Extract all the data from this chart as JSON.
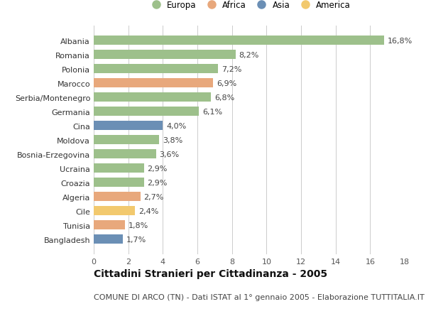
{
  "categories": [
    "Albania",
    "Romania",
    "Polonia",
    "Marocco",
    "Serbia/Montenegro",
    "Germania",
    "Cina",
    "Moldova",
    "Bosnia-Erzegovina",
    "Ucraina",
    "Croazia",
    "Algeria",
    "Cile",
    "Tunisia",
    "Bangladesh"
  ],
  "values": [
    16.8,
    8.2,
    7.2,
    6.9,
    6.8,
    6.1,
    4.0,
    3.8,
    3.6,
    2.9,
    2.9,
    2.7,
    2.4,
    1.8,
    1.7
  ],
  "labels": [
    "16,8%",
    "8,2%",
    "7,2%",
    "6,9%",
    "6,8%",
    "6,1%",
    "4,0%",
    "3,8%",
    "3,6%",
    "2,9%",
    "2,9%",
    "2,7%",
    "2,4%",
    "1,8%",
    "1,7%"
  ],
  "continent": [
    "Europa",
    "Europa",
    "Europa",
    "Africa",
    "Europa",
    "Europa",
    "Asia",
    "Europa",
    "Europa",
    "Europa",
    "Europa",
    "Africa",
    "America",
    "Africa",
    "Asia"
  ],
  "colors": {
    "Europa": "#9dc08b",
    "Africa": "#e8a87c",
    "Asia": "#6b8fb5",
    "America": "#f2c96e"
  },
  "xlim": [
    0,
    18
  ],
  "xticks": [
    0,
    2,
    4,
    6,
    8,
    10,
    12,
    14,
    16,
    18
  ],
  "title": "Cittadini Stranieri per Cittadinanza - 2005",
  "subtitle": "COMUNE DI ARCO (TN) - Dati ISTAT al 1° gennaio 2005 - Elaborazione TUTTITALIA.IT",
  "background_color": "#ffffff",
  "grid_color": "#cccccc",
  "label_fontsize": 8,
  "title_fontsize": 10,
  "subtitle_fontsize": 8,
  "tick_fontsize": 8,
  "legend_fontsize": 8.5,
  "bar_height": 0.65
}
